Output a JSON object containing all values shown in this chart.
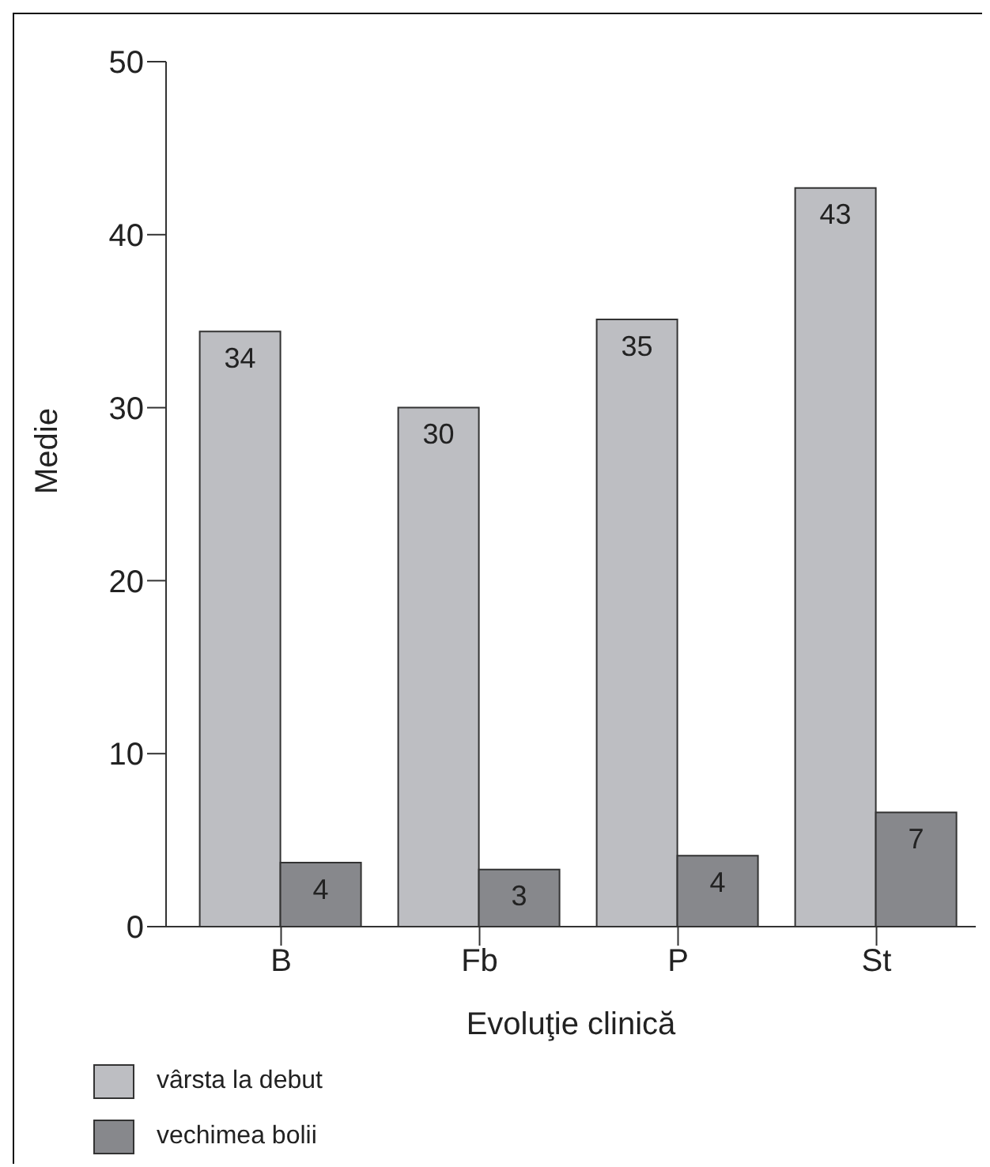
{
  "chart_data": {
    "type": "bar",
    "xlabel": "Evoluţie clinică",
    "ylabel": "Medie",
    "categories": [
      "B",
      "Fb",
      "P",
      "St"
    ],
    "series": [
      {
        "name": "vârsta la debut",
        "color": "#bdbec2",
        "values": [
          34.4,
          30.0,
          35.1,
          42.7
        ],
        "value_labels": [
          "34",
          "30",
          "35",
          "43"
        ]
      },
      {
        "name": "vechimea bolii",
        "color": "#87888c",
        "values": [
          3.7,
          3.3,
          4.1,
          6.6
        ],
        "value_labels": [
          "4",
          "3",
          "4",
          "7"
        ]
      }
    ],
    "ylim": [
      0,
      50
    ],
    "yticks": [
      0,
      10,
      20,
      30,
      40,
      50
    ],
    "grid": false,
    "legend": "bottom left"
  }
}
